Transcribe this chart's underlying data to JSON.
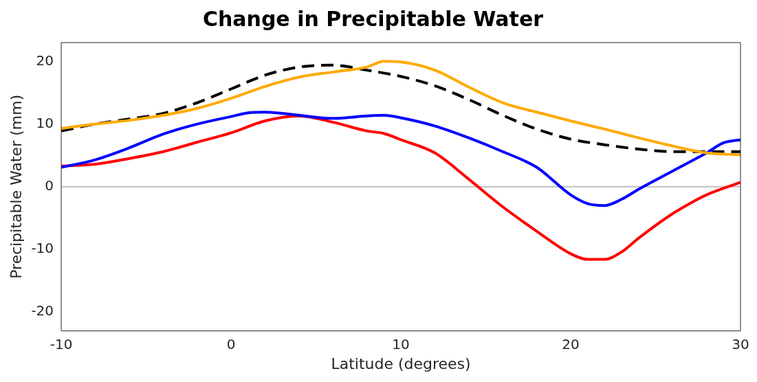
{
  "chart_data": {
    "type": "line",
    "title": "Change in Precipitable Water",
    "xlabel": "Latitude (degrees)",
    "ylabel": "Precipitable Water (mm)",
    "xlim": [
      -10,
      30
    ],
    "xticks": [
      -10,
      0,
      10,
      20,
      30
    ],
    "ylim": [
      -23,
      23
    ],
    "yticks": [
      -20,
      -10,
      0,
      10,
      20
    ],
    "grid": false,
    "legend": false,
    "marker": "none",
    "ref_lines": [
      {
        "axis": "y",
        "value": 0,
        "color": "#bfbfbf"
      }
    ],
    "series": [
      {
        "color": "#ffaa00",
        "line_style": "solid",
        "x": [
          -10,
          -8,
          -6,
          -4,
          -2,
          0,
          2,
          4,
          6,
          8,
          9,
          10,
          12,
          14,
          16,
          18,
          20,
          22,
          24,
          26,
          28,
          30
        ],
        "values": [
          9.3,
          10,
          10.6,
          11.4,
          12.5,
          14.1,
          16,
          17.5,
          18.3,
          19.1,
          20,
          19.9,
          18.6,
          15.9,
          13.4,
          11.9,
          10.5,
          9.2,
          7.8,
          6.5,
          5.4,
          5.1
        ]
      },
      {
        "color": "#0000ff",
        "line_style": "solid",
        "x": [
          -10,
          -8,
          -6,
          -4,
          -2,
          0,
          1,
          2,
          3,
          4,
          6,
          8,
          9,
          10,
          12,
          14,
          16,
          18,
          20,
          21,
          22,
          23,
          24,
          26,
          28,
          29,
          30
        ],
        "values": [
          3.1,
          4.3,
          6.2,
          8.4,
          10,
          11.2,
          11.8,
          11.9,
          11.7,
          11.4,
          10.9,
          11.3,
          11.4,
          11,
          9.7,
          7.8,
          5.6,
          3.1,
          -1.3,
          -2.7,
          -3,
          -2,
          -0.4,
          2.5,
          5.4,
          7,
          7.5
        ]
      },
      {
        "color": "#ff0000",
        "line_style": "solid",
        "x": [
          -10,
          -8,
          -6,
          -4,
          -2,
          0,
          2,
          4,
          6,
          8,
          9,
          10,
          12,
          14,
          16,
          18,
          20,
          21,
          22,
          23,
          24,
          26,
          27,
          28,
          30
        ],
        "values": [
          3.3,
          3.6,
          4.5,
          5.6,
          7.1,
          8.6,
          10.5,
          11.3,
          10.3,
          8.9,
          8.5,
          7.5,
          5.4,
          1.2,
          -3.2,
          -7.1,
          -10.7,
          -11.6,
          -11.6,
          -10.4,
          -8.2,
          -4.3,
          -2.7,
          -1.3,
          0.7
        ]
      },
      {
        "color": "#000000",
        "line_style": "dashed",
        "x": [
          -10,
          -8,
          -6,
          -4,
          -2,
          0,
          2,
          4,
          6,
          8,
          10,
          12,
          14,
          16,
          18,
          20,
          22,
          24,
          26,
          28,
          30
        ],
        "values": [
          8.9,
          10,
          10.8,
          11.7,
          13.4,
          15.6,
          17.8,
          19.1,
          19.4,
          18.6,
          17.6,
          16.1,
          13.9,
          11.4,
          9.2,
          7.6,
          6.7,
          6,
          5.6,
          5.6,
          5.6
        ]
      }
    ]
  }
}
